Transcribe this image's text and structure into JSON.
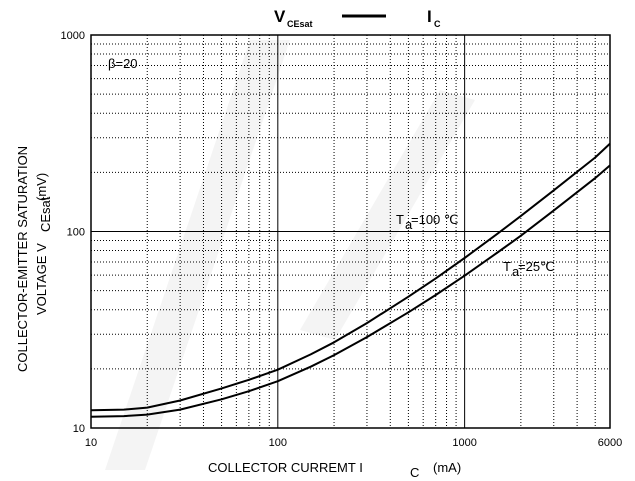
{
  "chart_data": {
    "type": "line",
    "title": {
      "left": "V",
      "left_sub": "CEsat",
      "right": "I",
      "right_sub": "C"
    },
    "xlabel": {
      "text": "COLLECTOR CURREMT  I",
      "sub": "C",
      "unit": "(mA)"
    },
    "ylabel": {
      "line1": "COLLECTOR-EMITTER SATURATION",
      "line2_pre": "VOLTAGE   V",
      "line2_sub": "CEsat",
      "line2_unit": "(mV)"
    },
    "x_scale": "log",
    "y_scale": "log",
    "xlim": [
      10,
      6000
    ],
    "ylim": [
      10,
      1000
    ],
    "x_ticks": [
      {
        "value": 10,
        "label": "10"
      },
      {
        "value": 100,
        "label": "100"
      },
      {
        "value": 1000,
        "label": "1000"
      },
      {
        "value": 6000,
        "label": "6000"
      }
    ],
    "y_ticks": [
      {
        "value": 10,
        "label": "10"
      },
      {
        "value": 100,
        "label": "100"
      },
      {
        "value": 1000,
        "label": "1000"
      }
    ],
    "grid": true,
    "annotations": [
      {
        "text": "β=20"
      }
    ],
    "series": [
      {
        "label_pre": "T",
        "label_sub": "a",
        "label_post": "=100 ℃",
        "x": [
          10,
          15,
          20,
          30,
          50,
          70,
          100,
          150,
          200,
          300,
          500,
          700,
          1000,
          1500,
          2000,
          3000,
          5000,
          6000
        ],
        "y": [
          12.3,
          12.4,
          12.7,
          13.8,
          15.9,
          17.6,
          19.8,
          23.7,
          27.3,
          34.2,
          46.6,
          57.7,
          73.3,
          97.5,
          120,
          162,
          238,
          280
        ]
      },
      {
        "label_pre": "T",
        "label_sub": "a",
        "label_post": "=25℃",
        "x": [
          10,
          15,
          20,
          30,
          50,
          70,
          100,
          150,
          200,
          300,
          500,
          700,
          1000,
          1500,
          2000,
          3000,
          5000,
          6000
        ],
        "y": [
          11.4,
          11.5,
          11.7,
          12.4,
          14.0,
          15.4,
          17.3,
          20.5,
          23.5,
          29.0,
          38.8,
          47.5,
          59.6,
          78.2,
          95.2,
          128,
          187,
          217
        ]
      }
    ]
  }
}
